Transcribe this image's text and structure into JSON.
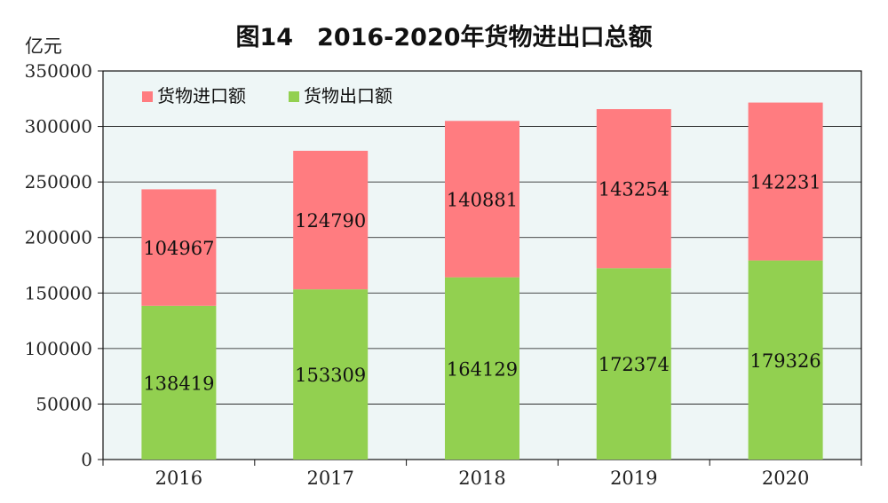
{
  "chart_data": {
    "type": "bar",
    "stacked": true,
    "title": "图14　2016-2020年货物进出口总额",
    "ylabel": "亿元",
    "xlabel": "",
    "categories": [
      "2016",
      "2017",
      "2018",
      "2019",
      "2020"
    ],
    "series": [
      {
        "name": "货物出口额",
        "color": "#92d050",
        "values": [
          138419,
          153309,
          164129,
          172374,
          179326
        ]
      },
      {
        "name": "货物进口额",
        "color": "#ff7c80",
        "values": [
          104967,
          124790,
          140881,
          143254,
          142231
        ]
      }
    ],
    "ylim": [
      0,
      350000
    ],
    "yticks": [
      0,
      50000,
      100000,
      150000,
      200000,
      250000,
      300000,
      350000
    ],
    "grid": true,
    "legend_position": "top-left",
    "plot_background": "#eef6f6"
  }
}
